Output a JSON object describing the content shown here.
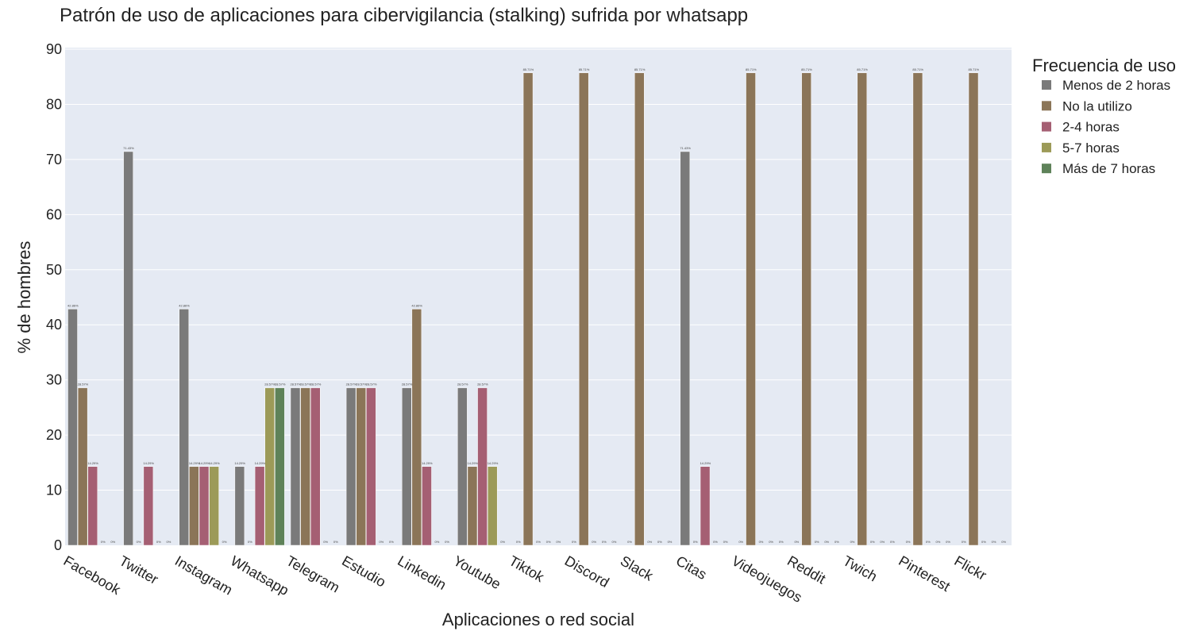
{
  "chart_data": {
    "type": "bar",
    "title": "Patrón de uso de aplicaciones para cibervigilancia (stalking) sufrida por whatsapp",
    "xlabel": "Aplicaciones o red social",
    "ylabel": "% de hombres",
    "ylim": [
      0,
      90
    ],
    "yticks": [
      0,
      10,
      20,
      30,
      40,
      50,
      60,
      70,
      80,
      90
    ],
    "grid": true,
    "legend_title": "Frecuencia de uso",
    "legend_position": "top-right",
    "categories": [
      "Facebook",
      "Twitter",
      "Instagram",
      "Whatsapp",
      "Telegram",
      "Estudio",
      "Linkedin",
      "Youtube",
      "Tiktok",
      "Discord",
      "Slack",
      "Citas",
      "Videojuegos",
      "Reddit",
      "Twich",
      "Pinterest",
      "Flickr"
    ],
    "series": [
      {
        "name": "Menos de 2 horas",
        "color": "#7a7a7a",
        "values": [
          42.86,
          71.43,
          42.86,
          14.29,
          28.57,
          28.57,
          28.57,
          28.57,
          0,
          0,
          0,
          71.43,
          0,
          0,
          0,
          0,
          0
        ],
        "labels": [
          "42.86%",
          "71.43%",
          "42.86%",
          "14.29%",
          "28.57%",
          "28.57%",
          "28.57%",
          "28.57%",
          "0%",
          "0%",
          "0%",
          "71.43%",
          "0%",
          "0%",
          "0%",
          "0%",
          "0%"
        ]
      },
      {
        "name": "No la utilizo",
        "color": "#8b7558",
        "values": [
          28.57,
          0,
          14.29,
          0,
          28.57,
          28.57,
          42.86,
          14.29,
          85.71,
          85.71,
          85.71,
          0,
          85.71,
          85.71,
          85.71,
          85.71,
          85.71
        ],
        "labels": [
          "28.57%",
          "0%",
          "14.29%",
          "0%",
          "28.57%",
          "28.57%",
          "42.86%",
          "14.29%",
          "85.71%",
          "85.71%",
          "85.71%",
          "0%",
          "85.71%",
          "85.71%",
          "85.71%",
          "85.71%",
          "85.71%"
        ]
      },
      {
        "name": "2-4 horas",
        "color": "#a55f73",
        "values": [
          14.29,
          14.29,
          14.29,
          14.29,
          28.57,
          28.57,
          14.29,
          28.57,
          0,
          0,
          0,
          14.29,
          0,
          0,
          0,
          0,
          0
        ],
        "labels": [
          "14.29%",
          "14.29%",
          "14.29%",
          "14.29%",
          "28.57%",
          "28.57%",
          "14.29%",
          "28.57%",
          "0%",
          "0%",
          "0%",
          "14.29%",
          "0%",
          "0%",
          "0%",
          "0%",
          "0%"
        ]
      },
      {
        "name": "5-7 horas",
        "color": "#9c9a58",
        "values": [
          0,
          0,
          14.29,
          28.57,
          0,
          0,
          0,
          14.29,
          0,
          0,
          0,
          0,
          0,
          0,
          0,
          0,
          0
        ],
        "labels": [
          "0%",
          "0%",
          "14.29%",
          "28.57%",
          "0%",
          "0%",
          "0%",
          "14.29%",
          "0%",
          "0%",
          "0%",
          "0%",
          "0%",
          "0%",
          "0%",
          "0%",
          "0%"
        ]
      },
      {
        "name": "Más de 7 horas",
        "color": "#5e8259",
        "values": [
          0,
          0,
          0,
          28.57,
          0,
          0,
          0,
          0,
          0,
          0,
          0,
          0,
          0,
          0,
          0,
          0,
          0
        ],
        "labels": [
          "0%",
          "0%",
          "0%",
          "28.57%",
          "0%",
          "0%",
          "0%",
          "0%",
          "0%",
          "0%",
          "0%",
          "0%",
          "0%",
          "0%",
          "0%",
          "0%",
          "0%"
        ]
      }
    ]
  },
  "colors": {
    "plot_background": "#e5eaf3",
    "gridline": "#ffffff"
  }
}
